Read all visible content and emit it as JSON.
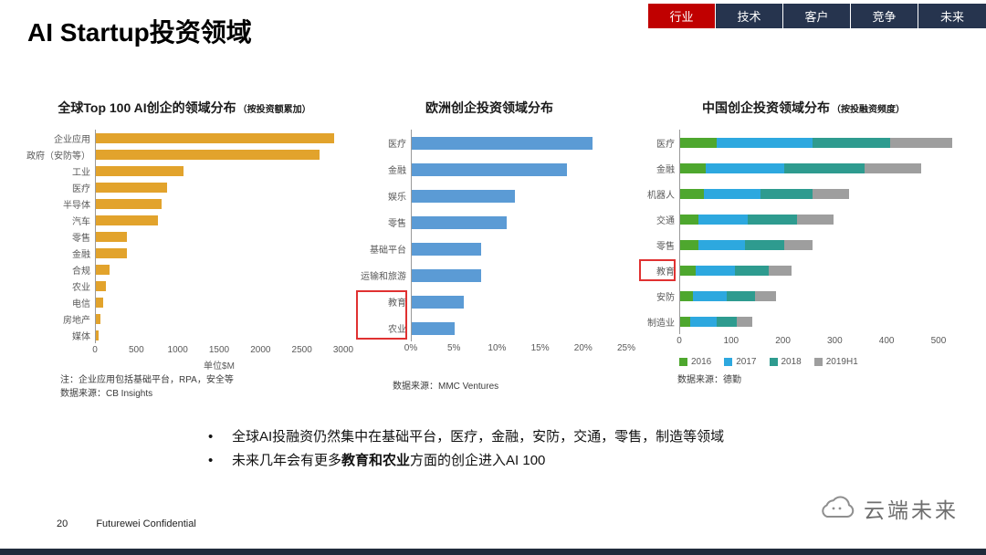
{
  "header": {
    "title": "AI Startup投资领域",
    "nav": [
      {
        "label": "行业",
        "active": true
      },
      {
        "label": "技术",
        "active": false
      },
      {
        "label": "客户",
        "active": false
      },
      {
        "label": "竞争",
        "active": false
      },
      {
        "label": "未来",
        "active": false
      }
    ]
  },
  "chart_data": [
    {
      "type": "bar",
      "title": "全球Top 100 AI创企的领域分布",
      "subtitle": "（按投资额累加）",
      "categories": [
        "企业应用",
        "政府（安防等）",
        "工业",
        "医疗",
        "半导体",
        "汽车",
        "零售",
        "金融",
        "合规",
        "农业",
        "电信",
        "房地产",
        "媒体"
      ],
      "values": [
        2875,
        2700,
        1060,
        855,
        795,
        750,
        380,
        375,
        160,
        125,
        90,
        60,
        35
      ],
      "color": "#E2A32C",
      "xmax": 3000,
      "xticks": [
        0,
        500,
        1000,
        1500,
        2000,
        2500,
        3000
      ],
      "tick_suffix": "",
      "xlabel": "单位$M",
      "note": "注：企业应用包括基础平台，RPA，安全等",
      "source": "数据来源：CB Insights",
      "highlight": [],
      "legend_position": "none",
      "grid": false
    },
    {
      "type": "bar",
      "title": "欧洲创企投资领域分布",
      "subtitle": "",
      "categories": [
        "医疗",
        "金融",
        "娱乐",
        "零售",
        "基础平台",
        "运输和旅游",
        "教育",
        "农业"
      ],
      "values": [
        21,
        18,
        12,
        11,
        8,
        8,
        6,
        5
      ],
      "color": "#5B9BD5",
      "xmax": 25,
      "xticks": [
        0,
        5,
        10,
        15,
        20,
        25
      ],
      "tick_suffix": "%",
      "xlabel": "",
      "note": "",
      "source": "数据来源：MMC Ventures",
      "highlight": [
        "教育",
        "农业"
      ],
      "legend_position": "none",
      "grid": false
    },
    {
      "type": "stacked-bar",
      "title": "中国创企投资领域分布",
      "subtitle": "（按投融资频度）",
      "categories": [
        "医疗",
        "金融",
        "机器人",
        "交通",
        "零售",
        "教育",
        "安防",
        "制造业"
      ],
      "series": [
        {
          "name": "2016",
          "color": "#4EA72E",
          "values": [
            70,
            50,
            45,
            35,
            35,
            30,
            25,
            20
          ]
        },
        {
          "name": "2017",
          "color": "#2DA8DF",
          "values": [
            185,
            150,
            110,
            95,
            90,
            75,
            65,
            50
          ]
        },
        {
          "name": "2018",
          "color": "#2E9B8F",
          "values": [
            150,
            155,
            100,
            95,
            75,
            65,
            55,
            40
          ]
        },
        {
          "name": "2019H1",
          "color": "#9E9E9E",
          "values": [
            120,
            110,
            70,
            70,
            55,
            45,
            40,
            30
          ]
        }
      ],
      "xmax": 560,
      "xticks": [
        0,
        100,
        200,
        300,
        400,
        500
      ],
      "tick_suffix": "",
      "xlabel": "",
      "note": "",
      "source": "数据来源：德勤",
      "highlight": [
        "教育"
      ],
      "legend_position": "bottom",
      "grid": false
    }
  ],
  "bullets": [
    {
      "parts": [
        {
          "text": "全球AI投融资仍然集中在基础平台，医疗，金融，安防，交通，零售，制造等领域",
          "bold": false
        }
      ]
    },
    {
      "parts": [
        {
          "text": "未来几年会有更多",
          "bold": false
        },
        {
          "text": "教育和农业",
          "bold": true
        },
        {
          "text": "方面的创企进入AI  100",
          "bold": false
        }
      ]
    }
  ],
  "footer": {
    "page_number": "20",
    "confidential": "Futurewei Confidential",
    "logo_text": "云端未来"
  }
}
